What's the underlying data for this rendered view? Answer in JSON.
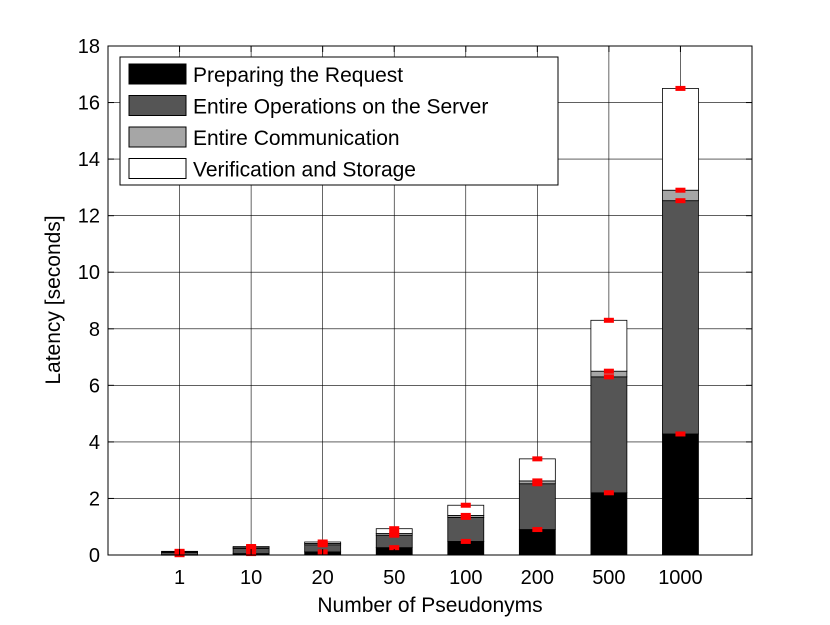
{
  "chart_data": {
    "type": "bar",
    "stacked": true,
    "categories": [
      "1",
      "10",
      "20",
      "50",
      "100",
      "200",
      "500",
      "1000"
    ],
    "xlabel": "Number of Pseudonyms",
    "ylabel": "Latency [seconds]",
    "ylim": [
      0,
      18
    ],
    "yticks": [
      0,
      2,
      4,
      6,
      8,
      10,
      12,
      14,
      16,
      18
    ],
    "grid": true,
    "legend_position": "top-left",
    "series": [
      {
        "name": "Preparing the Request",
        "color": "#000000",
        "values": [
          0.01,
          0.05,
          0.11,
          0.26,
          0.48,
          0.9,
          2.2,
          4.28
        ]
      },
      {
        "name": "Entire Operations on the Server",
        "color": "#555555",
        "values": [
          0.08,
          0.18,
          0.25,
          0.44,
          0.85,
          1.62,
          4.1,
          8.25
        ]
      },
      {
        "name": "Entire Communication",
        "color": "#a6a6a6",
        "values": [
          0.02,
          0.03,
          0.05,
          0.06,
          0.07,
          0.1,
          0.2,
          0.37
        ]
      },
      {
        "name": "Verification and Storage",
        "color": "#ffffff",
        "values": [
          0.02,
          0.04,
          0.05,
          0.17,
          0.36,
          0.78,
          1.8,
          3.6
        ]
      }
    ],
    "error_marker_color": "#ff0000"
  }
}
